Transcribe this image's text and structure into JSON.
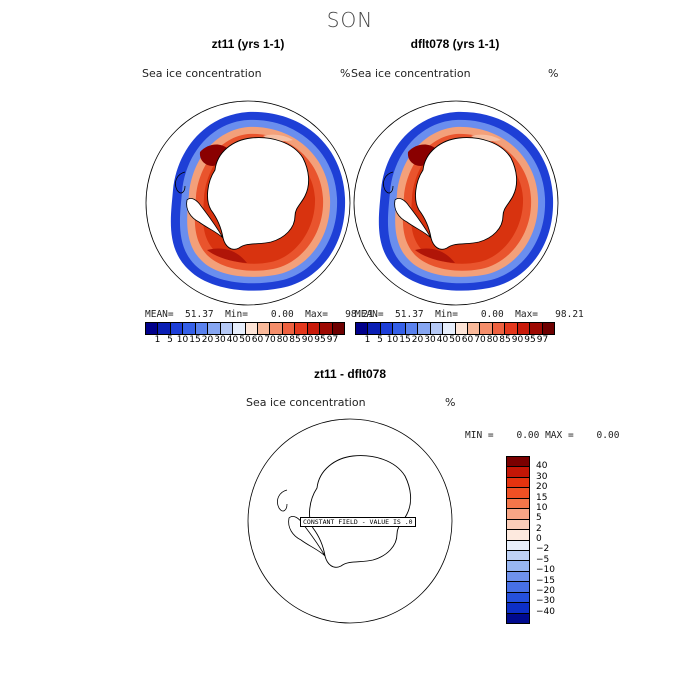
{
  "season": "SON",
  "panels": [
    {
      "title": "zt11 (yrs 1-1)",
      "field": "Sea ice concentration",
      "units": "%",
      "stats": "MEAN=  51.37  Min=    0.00  Max=   98.21"
    },
    {
      "title": "dflt078 (yrs 1-1)",
      "field": "Sea ice concentration",
      "units": "%",
      "stats": "MEAN=  51.37  Min=    0.00  Max=   98.21"
    }
  ],
  "diff": {
    "title": "zt11 - dflt078",
    "field": "Sea ice concentration",
    "units": "%",
    "stats": "MIN =    0.00 MAX =    0.00",
    "constant_label": "CONSTANT FIELD - VALUE IS .0"
  },
  "colorbar_main": {
    "colors": [
      "#00008b",
      "#0a1fb5",
      "#1d3fd8",
      "#3560e8",
      "#5a82ee",
      "#86a6f2",
      "#b5c9f6",
      "#e6eefc",
      "#fde4d6",
      "#f9b99a",
      "#f58e6b",
      "#ee6140",
      "#e3381d",
      "#c81a0a",
      "#9e0a03",
      "#6e0000"
    ],
    "labels": [
      "1",
      "5",
      "10",
      "15",
      "20",
      "30",
      "40",
      "50",
      "60",
      "70",
      "80",
      "85",
      "90",
      "95",
      "97"
    ]
  },
  "colorbar_diff": {
    "colors": [
      "#7a0000",
      "#c41606",
      "#e5330f",
      "#f05024",
      "#f4764a",
      "#f8a585",
      "#fbcdb8",
      "#fde9de",
      "#e8effb",
      "#bed1f5",
      "#98b6f1",
      "#6f92ec",
      "#4770e6",
      "#2550dc",
      "#0d2fc6",
      "#000a8e"
    ],
    "labels": [
      "40",
      "30",
      "20",
      "15",
      "10",
      "5",
      "2",
      "0",
      "−2",
      "−5",
      "−10",
      "−15",
      "−20",
      "−30",
      "−40"
    ]
  }
}
